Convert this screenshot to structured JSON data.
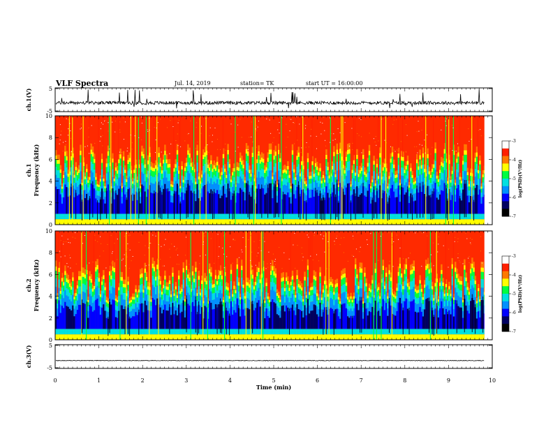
{
  "header": {
    "title": "VLF Spectra",
    "date": "Jul. 14, 2019",
    "station": "station= TK",
    "start": "start UT =  16:00:00"
  },
  "chart_data": [
    {
      "type": "line",
      "panel": "ch1_waveform",
      "ylabel": "ch.1(V)",
      "ylim": [
        -5,
        5
      ],
      "yticks": [
        "5",
        "-5"
      ],
      "xlim": [
        0,
        10
      ],
      "baseline": -1.3,
      "color": "#000000"
    },
    {
      "type": "heatmap",
      "panel": "ch1_spectrogram",
      "ylabel_top": "ch.1",
      "ylabel": "Frequency (kHz)",
      "ylim": [
        0,
        10
      ],
      "yticks": [
        "0",
        "2",
        "4",
        "6",
        "8",
        "10"
      ],
      "xlim": [
        0,
        9.8
      ],
      "colorbar": {
        "label": "log(PSD)(V²/Hz)",
        "range": [
          -7,
          -3
        ],
        "ticks": [
          "-3",
          "-4",
          "-5",
          "-6",
          "-7"
        ]
      }
    },
    {
      "type": "heatmap",
      "panel": "ch2_spectrogram",
      "ylabel_top": "ch.2",
      "ylabel": "Frequency (kHz)",
      "ylim": [
        0,
        10
      ],
      "yticks": [
        "0",
        "2",
        "4",
        "6",
        "8",
        "10"
      ],
      "xlim": [
        0,
        9.8
      ],
      "colorbar": {
        "label": "log(PSD)(V²/Hz)",
        "range": [
          -7,
          -3
        ],
        "ticks": [
          "-3",
          "-4",
          "-5",
          "-6",
          "-7"
        ]
      }
    },
    {
      "type": "line",
      "panel": "ch3_waveform",
      "ylabel": "ch.3(V)",
      "ylim": [
        -5,
        5
      ],
      "yticks": [
        "5",
        "-5"
      ],
      "xlim": [
        0,
        10
      ],
      "baseline": -1.7,
      "color": "#000000"
    }
  ],
  "xaxis": {
    "label": "Time (min)",
    "ticks": [
      "0",
      "1",
      "2",
      "3",
      "4",
      "5",
      "6",
      "7",
      "8",
      "9",
      "10"
    ],
    "range": [
      0,
      10
    ]
  },
  "colors": {
    "spectrum": [
      "#000060",
      "#0000ff",
      "#0090ff",
      "#00e0e0",
      "#00ff40",
      "#ffff00",
      "#ff7800",
      "#ff2000",
      "#ffffff"
    ]
  }
}
